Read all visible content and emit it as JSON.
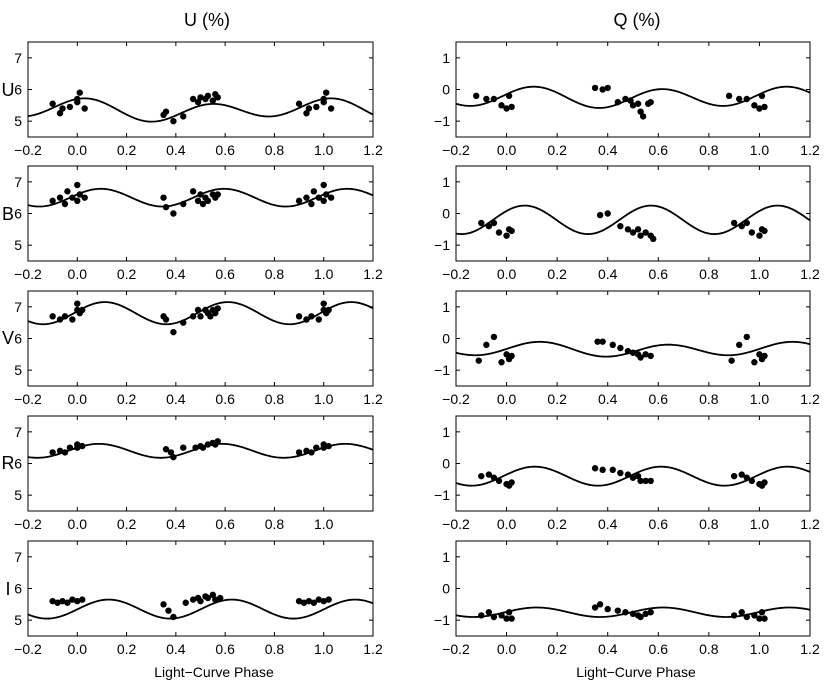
{
  "column_titles": [
    "U (%)",
    "Q (%)"
  ],
  "row_labels": [
    "U",
    "B",
    "V",
    "R",
    "I"
  ],
  "xlabel": "Light−Curve Phase",
  "colors": {
    "axis": "#000000",
    "curve": "#000000",
    "points": "#000000"
  },
  "chart_data": [
    {
      "type": "scatter",
      "panel": "U-band U (%)",
      "xlim": [
        -0.2,
        1.2
      ],
      "ylim": [
        4.5,
        7.5
      ],
      "xticks": [
        "−0.2",
        "0.0",
        "0.2",
        "0.4",
        "0.6",
        "0.8",
        "1.0",
        "1.2"
      ],
      "yticks": [
        "5",
        "6",
        "7"
      ],
      "model": {
        "mean": 5.35,
        "terms": [
          [
            1,
            0.12,
            0.5
          ],
          [
            2,
            0.28,
            -0.5
          ]
        ]
      },
      "x": [
        -0.1,
        -0.07,
        -0.06,
        -0.03,
        0.0,
        0.0,
        0.01,
        0.03,
        0.35,
        0.36,
        0.39,
        0.43,
        0.47,
        0.49,
        0.5,
        0.52,
        0.53,
        0.55,
        0.56,
        0.57,
        0.9,
        0.93,
        0.94,
        0.97,
        1.0,
        1.0,
        1.01,
        1.03
      ],
      "y": [
        5.55,
        5.25,
        5.4,
        5.45,
        5.7,
        5.6,
        5.9,
        5.4,
        5.2,
        5.3,
        5.0,
        5.15,
        5.7,
        5.6,
        5.75,
        5.7,
        5.8,
        5.65,
        5.85,
        5.75,
        5.55,
        5.25,
        5.4,
        5.45,
        5.7,
        5.6,
        5.9,
        5.4
      ]
    },
    {
      "type": "scatter",
      "panel": "U-band Q (%)",
      "xlim": [
        -0.2,
        1.2
      ],
      "ylim": [
        -1.5,
        1.5
      ],
      "xticks": [
        "−0.2",
        "0.0",
        "0.2",
        "0.4",
        "0.6",
        "0.8",
        "1.0",
        "1.2"
      ],
      "yticks": [
        "−1",
        "0",
        "1"
      ],
      "model": {
        "mean": -0.25,
        "terms": [
          [
            1,
            0.05,
            0.0
          ],
          [
            2,
            0.3,
            -1.4
          ]
        ]
      },
      "x": [
        -0.12,
        -0.08,
        -0.05,
        -0.02,
        0.0,
        0.01,
        0.02,
        0.35,
        0.38,
        0.4,
        0.44,
        0.47,
        0.49,
        0.5,
        0.52,
        0.53,
        0.54,
        0.56,
        0.57,
        0.88,
        0.92,
        0.95,
        0.98,
        1.0,
        1.01,
        1.02
      ],
      "y": [
        -0.2,
        -0.3,
        -0.3,
        -0.5,
        -0.6,
        -0.2,
        -0.55,
        0.05,
        0.0,
        0.05,
        -0.4,
        -0.3,
        -0.35,
        -0.5,
        -0.45,
        -0.7,
        -0.85,
        -0.45,
        -0.4,
        -0.2,
        -0.3,
        -0.3,
        -0.5,
        -0.6,
        -0.2,
        -0.55
      ]
    },
    {
      "type": "scatter",
      "panel": "B-band U (%)",
      "xlim": [
        -0.2,
        1.2
      ],
      "ylim": [
        4.5,
        7.5
      ],
      "xticks": [
        "−0.2",
        "0.0",
        "0.2",
        "0.4",
        "0.6",
        "0.8",
        "1.0",
        "1.2"
      ],
      "yticks": [
        "5",
        "6",
        "7"
      ],
      "model": {
        "mean": 6.5,
        "terms": [
          [
            1,
            0.0,
            0.0
          ],
          [
            2,
            0.28,
            -1.2
          ]
        ]
      },
      "x": [
        -0.1,
        -0.07,
        -0.05,
        -0.04,
        -0.02,
        0.0,
        0.0,
        0.01,
        0.03,
        0.35,
        0.36,
        0.39,
        0.43,
        0.47,
        0.49,
        0.5,
        0.51,
        0.52,
        0.53,
        0.55,
        0.56,
        0.57,
        0.9,
        0.93,
        0.95,
        0.96,
        0.98,
        1.0,
        1.0,
        1.01,
        1.03
      ],
      "y": [
        6.4,
        6.5,
        6.3,
        6.7,
        6.5,
        6.9,
        6.4,
        6.6,
        6.5,
        6.5,
        6.2,
        6.0,
        6.3,
        6.7,
        6.4,
        6.6,
        6.3,
        6.5,
        6.4,
        6.6,
        6.5,
        6.6,
        6.4,
        6.5,
        6.3,
        6.7,
        6.5,
        6.9,
        6.4,
        6.6,
        6.5
      ]
    },
    {
      "type": "scatter",
      "panel": "B-band Q (%)",
      "xlim": [
        -0.2,
        1.2
      ],
      "ylim": [
        -1.5,
        1.5
      ],
      "xticks": [
        "−0.2",
        "0.0",
        "0.2",
        "0.4",
        "0.6",
        "0.8",
        "1.0",
        "1.2"
      ],
      "yticks": [
        "−1",
        "0",
        "1"
      ],
      "model": {
        "mean": -0.2,
        "terms": [
          [
            1,
            0.0,
            0.0
          ],
          [
            2,
            0.45,
            -0.9
          ]
        ]
      },
      "x": [
        -0.1,
        -0.07,
        -0.05,
        -0.03,
        0.0,
        0.01,
        0.02,
        0.37,
        0.4,
        0.45,
        0.48,
        0.5,
        0.52,
        0.53,
        0.55,
        0.57,
        0.58,
        0.9,
        0.93,
        0.95,
        0.97,
        1.0,
        1.01,
        1.02
      ],
      "y": [
        -0.3,
        -0.4,
        -0.3,
        -0.6,
        -0.7,
        -0.5,
        -0.55,
        -0.05,
        0.0,
        -0.4,
        -0.5,
        -0.6,
        -0.5,
        -0.7,
        -0.6,
        -0.7,
        -0.8,
        -0.3,
        -0.4,
        -0.3,
        -0.6,
        -0.7,
        -0.5,
        -0.55
      ]
    },
    {
      "type": "scatter",
      "panel": "V-band U (%)",
      "xlim": [
        -0.2,
        1.2
      ],
      "ylim": [
        4.5,
        7.5
      ],
      "xticks": [
        "−0.2",
        "0.0",
        "0.2",
        "0.4",
        "0.6",
        "0.8",
        "1.0",
        "1.2"
      ],
      "yticks": [
        "5",
        "6",
        "7"
      ],
      "model": {
        "mean": 6.8,
        "terms": [
          [
            1,
            0.0,
            0.0
          ],
          [
            2,
            0.35,
            -1.4
          ]
        ]
      },
      "x": [
        -0.1,
        -0.07,
        -0.05,
        -0.02,
        0.0,
        0.0,
        0.01,
        0.02,
        0.35,
        0.36,
        0.39,
        0.43,
        0.47,
        0.49,
        0.5,
        0.52,
        0.53,
        0.54,
        0.55,
        0.56,
        0.57,
        0.9,
        0.93,
        0.95,
        0.98,
        1.0,
        1.0,
        1.01,
        1.02
      ],
      "y": [
        6.7,
        6.6,
        6.7,
        6.6,
        6.9,
        7.1,
        6.8,
        6.9,
        6.7,
        6.6,
        6.2,
        6.5,
        6.7,
        6.9,
        6.7,
        6.9,
        6.8,
        6.7,
        6.9,
        6.8,
        6.95,
        6.7,
        6.6,
        6.7,
        6.6,
        6.9,
        7.1,
        6.8,
        6.9
      ]
    },
    {
      "type": "scatter",
      "panel": "V-band Q (%)",
      "xlim": [
        -0.2,
        1.2
      ],
      "ylim": [
        -1.5,
        1.5
      ],
      "xticks": [
        "−0.2",
        "0.0",
        "0.2",
        "0.4",
        "0.6",
        "0.8",
        "1.0",
        "1.2"
      ],
      "yticks": [
        "−1",
        "0",
        "1"
      ],
      "model": {
        "mean": -0.35,
        "terms": [
          [
            1,
            0.05,
            -0.4
          ],
          [
            2,
            0.2,
            -1.7
          ]
        ]
      },
      "x": [
        -0.11,
        -0.08,
        -0.05,
        -0.02,
        0.0,
        0.01,
        0.02,
        0.36,
        0.38,
        0.42,
        0.45,
        0.48,
        0.5,
        0.52,
        0.53,
        0.55,
        0.57,
        0.89,
        0.92,
        0.95,
        0.98,
        1.0,
        1.01,
        1.02
      ],
      "y": [
        -0.7,
        -0.2,
        0.05,
        -0.75,
        -0.5,
        -0.65,
        -0.55,
        -0.1,
        -0.1,
        -0.2,
        -0.3,
        -0.4,
        -0.45,
        -0.5,
        -0.6,
        -0.5,
        -0.55,
        -0.7,
        -0.2,
        0.05,
        -0.75,
        -0.5,
        -0.65,
        -0.55
      ]
    },
    {
      "type": "scatter",
      "panel": "R-band U (%)",
      "xlim": [
        -0.2,
        1.2
      ],
      "ylim": [
        4.5,
        7.5
      ],
      "xticks": [
        "−0.2",
        "0.0",
        "0.2",
        "0.4",
        "0.6",
        "0.8",
        "1.0"
      ],
      "yticks": [
        "5",
        "6",
        "7"
      ],
      "model": {
        "mean": 6.4,
        "terms": [
          [
            1,
            0.0,
            0.0
          ],
          [
            2,
            0.22,
            -1.1
          ]
        ]
      },
      "x": [
        -0.1,
        -0.07,
        -0.05,
        -0.03,
        0.0,
        0.0,
        0.02,
        0.36,
        0.38,
        0.39,
        0.43,
        0.48,
        0.5,
        0.51,
        0.53,
        0.55,
        0.56,
        0.57,
        0.9,
        0.93,
        0.95,
        0.97,
        1.0,
        1.0,
        1.02
      ],
      "y": [
        6.35,
        6.4,
        6.35,
        6.5,
        6.5,
        6.6,
        6.55,
        6.45,
        6.35,
        6.2,
        6.5,
        6.5,
        6.55,
        6.5,
        6.6,
        6.65,
        6.6,
        6.7,
        6.35,
        6.4,
        6.35,
        6.5,
        6.5,
        6.6,
        6.55
      ]
    },
    {
      "type": "scatter",
      "panel": "R-band Q (%)",
      "xlim": [
        -0.2,
        1.2
      ],
      "ylim": [
        -1.5,
        1.5
      ],
      "xticks": [
        "−0.2",
        "0.0",
        "0.2",
        "0.4",
        "0.6",
        "0.8",
        "1.0",
        "1.2"
      ],
      "yticks": [
        "−1",
        "0",
        "1"
      ],
      "model": {
        "mean": -0.4,
        "terms": [
          [
            1,
            0.0,
            0.0
          ],
          [
            2,
            0.3,
            -1.4
          ]
        ]
      },
      "x": [
        -0.1,
        -0.07,
        -0.05,
        -0.03,
        0.0,
        0.01,
        0.02,
        0.35,
        0.38,
        0.42,
        0.45,
        0.48,
        0.5,
        0.52,
        0.53,
        0.55,
        0.57,
        0.9,
        0.93,
        0.95,
        0.97,
        1.0,
        1.01,
        1.02
      ],
      "y": [
        -0.4,
        -0.35,
        -0.45,
        -0.55,
        -0.65,
        -0.7,
        -0.6,
        -0.15,
        -0.2,
        -0.2,
        -0.3,
        -0.35,
        -0.45,
        -0.4,
        -0.55,
        -0.55,
        -0.55,
        -0.4,
        -0.35,
        -0.45,
        -0.55,
        -0.65,
        -0.7,
        -0.6
      ]
    },
    {
      "type": "scatter",
      "panel": "I-band U (%)",
      "xlim": [
        -0.2,
        1.2
      ],
      "ylim": [
        4.5,
        7.5
      ],
      "xticks": [
        "−0.2",
        "0.0",
        "0.2",
        "0.4",
        "0.6",
        "0.8",
        "1.0",
        "1.2"
      ],
      "yticks": [
        "5",
        "6",
        "7"
      ],
      "model": {
        "mean": 5.35,
        "terms": [
          [
            1,
            0.0,
            0.0
          ],
          [
            2,
            0.3,
            -1.6
          ]
        ]
      },
      "x": [
        -0.1,
        -0.08,
        -0.06,
        -0.04,
        -0.02,
        0.0,
        0.02,
        0.35,
        0.37,
        0.39,
        0.44,
        0.47,
        0.49,
        0.5,
        0.52,
        0.53,
        0.55,
        0.56,
        0.58,
        0.9,
        0.92,
        0.94,
        0.96,
        0.98,
        1.0,
        1.02
      ],
      "y": [
        5.6,
        5.55,
        5.6,
        5.55,
        5.65,
        5.6,
        5.65,
        5.5,
        5.3,
        5.1,
        5.55,
        5.65,
        5.7,
        5.6,
        5.75,
        5.7,
        5.8,
        5.65,
        5.7,
        5.6,
        5.55,
        5.6,
        5.55,
        5.65,
        5.6,
        5.65
      ]
    },
    {
      "type": "scatter",
      "panel": "I-band Q (%)",
      "xlim": [
        -0.2,
        1.2
      ],
      "ylim": [
        -1.5,
        1.5
      ],
      "xticks": [
        "−0.2",
        "0.0",
        "0.2",
        "0.4",
        "0.6",
        "0.8",
        "1.0",
        "1.2"
      ],
      "yticks": [
        "−1",
        "0",
        "1"
      ],
      "model": {
        "mean": -0.75,
        "terms": [
          [
            1,
            0.0,
            0.0
          ],
          [
            2,
            0.15,
            -1.5
          ]
        ]
      },
      "x": [
        -0.1,
        -0.07,
        -0.05,
        -0.02,
        0.0,
        0.01,
        0.02,
        0.35,
        0.37,
        0.4,
        0.44,
        0.47,
        0.5,
        0.52,
        0.53,
        0.55,
        0.57,
        0.9,
        0.93,
        0.95,
        0.98,
        1.0,
        1.01,
        1.02
      ],
      "y": [
        -0.85,
        -0.75,
        -0.9,
        -0.85,
        -0.95,
        -0.75,
        -0.95,
        -0.6,
        -0.5,
        -0.65,
        -0.7,
        -0.75,
        -0.8,
        -0.85,
        -0.9,
        -0.8,
        -0.75,
        -0.85,
        -0.75,
        -0.9,
        -0.85,
        -0.95,
        -0.75,
        -0.95
      ]
    }
  ]
}
